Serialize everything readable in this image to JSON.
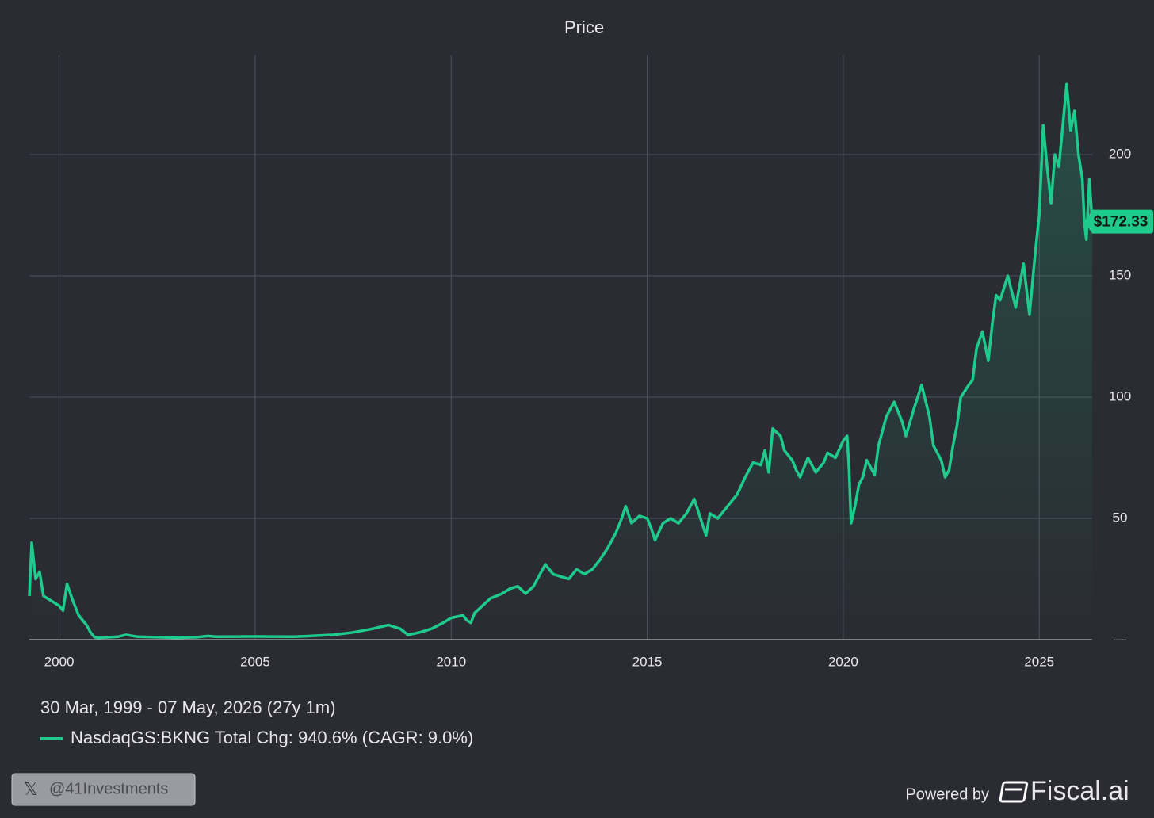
{
  "chart_data": {
    "type": "line",
    "title": "Price",
    "date_range": "30 Mar, 1999 - 07 May, 2026 (27y 1m)",
    "xlim": [
      1999.24,
      2026.35
    ],
    "xticks": [
      2000,
      2005,
      2010,
      2015,
      2020,
      2025
    ],
    "ylim": [
      0,
      240
    ],
    "yticks": [
      {
        "value": 0,
        "label": "—"
      },
      50,
      100,
      150,
      200
    ],
    "grid": true,
    "x": [
      1999.24,
      1999.3,
      1999.4,
      1999.5,
      1999.6,
      1999.8,
      2000.0,
      2000.1,
      2000.2,
      2000.35,
      2000.5,
      2000.7,
      2000.8,
      2000.9,
      2001.0,
      2001.5,
      2001.7,
      2002.0,
      2002.5,
      2003.0,
      2003.5,
      2003.8,
      2004.0,
      2005.0,
      2006.0,
      2007.0,
      2007.5,
      2008.0,
      2008.4,
      2008.7,
      2008.9,
      2009.2,
      2009.5,
      2009.8,
      2010.0,
      2010.3,
      2010.4,
      2010.5,
      2010.6,
      2010.8,
      2011.0,
      2011.3,
      2011.5,
      2011.7,
      2011.9,
      2012.1,
      2012.3,
      2012.4,
      2012.6,
      2012.8,
      2013.0,
      2013.2,
      2013.4,
      2013.6,
      2013.8,
      2014.0,
      2014.2,
      2014.35,
      2014.45,
      2014.6,
      2014.8,
      2015.0,
      2015.1,
      2015.2,
      2015.4,
      2015.6,
      2015.8,
      2016.0,
      2016.2,
      2016.4,
      2016.5,
      2016.6,
      2016.8,
      2017.0,
      2017.3,
      2017.5,
      2017.7,
      2017.9,
      2018.0,
      2018.1,
      2018.2,
      2018.4,
      2018.5,
      2018.7,
      2018.8,
      2018.9,
      2019.1,
      2019.3,
      2019.5,
      2019.6,
      2019.8,
      2020.0,
      2020.1,
      2020.15,
      2020.2,
      2020.3,
      2020.4,
      2020.5,
      2020.6,
      2020.8,
      2020.9,
      2021.1,
      2021.3,
      2021.5,
      2021.6,
      2021.8,
      2021.9,
      2022.0,
      2022.2,
      2022.3,
      2022.5,
      2022.6,
      2022.7,
      2022.8,
      2022.9,
      2023.0,
      2023.2,
      2023.3,
      2023.4,
      2023.55,
      2023.7,
      2023.8,
      2023.9,
      2024.0,
      2024.2,
      2024.4,
      2024.6,
      2024.75,
      2024.9,
      2025.0,
      2025.1,
      2025.2,
      2025.3,
      2025.4,
      2025.5,
      2025.6,
      2025.7,
      2025.8,
      2025.9,
      2026.0,
      2026.1,
      2026.15,
      2026.2,
      2026.28,
      2026.35
    ],
    "series": [
      {
        "name": "NasdaqGS:BKNG Total Chg: 940.6% (CAGR: 9.0%)",
        "color": "#1ecb8c",
        "end_label": "$172.33",
        "values": [
          18,
          40,
          25,
          28,
          18,
          16,
          14,
          12,
          23,
          16,
          10,
          6,
          3,
          1,
          0.8,
          1.2,
          2,
          1.2,
          1,
          0.8,
          1,
          1.5,
          1.2,
          1.3,
          1.2,
          2,
          3,
          4.5,
          6,
          4.5,
          2,
          3,
          4.5,
          7,
          9,
          10,
          8,
          7,
          11,
          14,
          17,
          19,
          21,
          22,
          19,
          22,
          28,
          31,
          27,
          26,
          25,
          29,
          27,
          29,
          33,
          38,
          44,
          50,
          55,
          48,
          51,
          50,
          46,
          41,
          48,
          50,
          48,
          52,
          58,
          48,
          43,
          52,
          50,
          54,
          60,
          67,
          73,
          72,
          78,
          69,
          87,
          84,
          78,
          74,
          70,
          67,
          75,
          69,
          73,
          77,
          75,
          82,
          84,
          70,
          48,
          55,
          64,
          67,
          74,
          68,
          80,
          92,
          98,
          90,
          84,
          95,
          100,
          105,
          92,
          80,
          74,
          67,
          70,
          80,
          88,
          100,
          105,
          107,
          120,
          127,
          115,
          130,
          142,
          140,
          150,
          137,
          155,
          134,
          160,
          175,
          212,
          195,
          180,
          200,
          195,
          212,
          229,
          210,
          218,
          200,
          190,
          172,
          165,
          190,
          172.33
        ]
      }
    ]
  },
  "footer": {
    "handle": "@41Investments",
    "powered_by": "Powered by",
    "brand": "Fiscal.ai"
  }
}
